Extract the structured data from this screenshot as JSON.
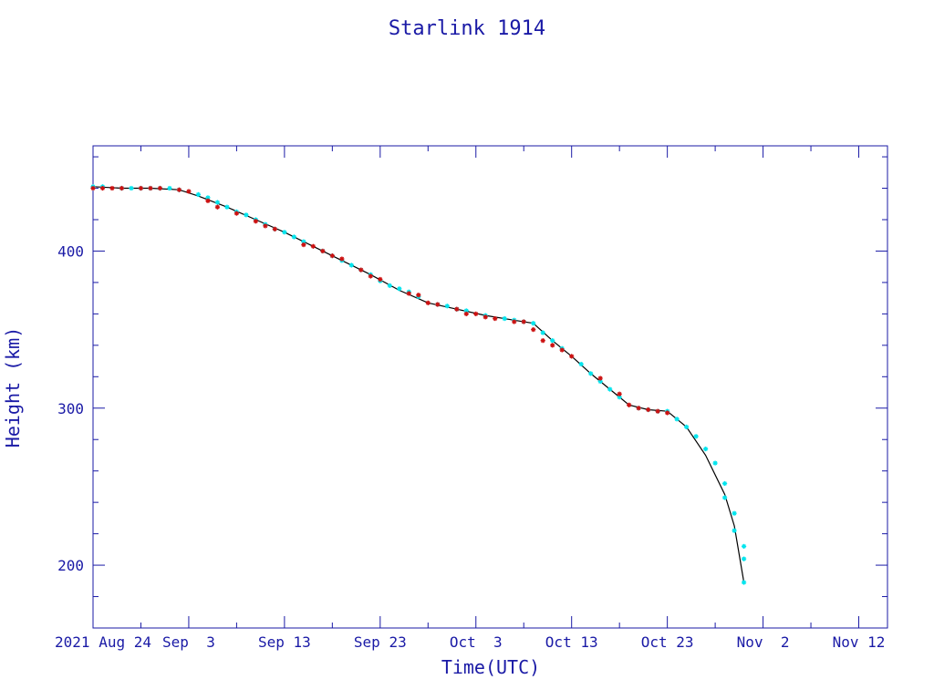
{
  "chart_data": {
    "type": "scatter",
    "title": "Starlink 1914",
    "xlabel": "Time(UTC)",
    "ylabel": "Height (km)",
    "xlim": [
      "2021-08-24",
      "2021-11-15"
    ],
    "ylim": [
      160,
      467
    ],
    "x_ticks": [
      {
        "date": "2021-08-24",
        "label": "2021 Aug 24"
      },
      {
        "date": "2021-09-03",
        "label": "Sep  3"
      },
      {
        "date": "2021-09-13",
        "label": "Sep 13"
      },
      {
        "date": "2021-09-23",
        "label": "Sep 23"
      },
      {
        "date": "2021-10-03",
        "label": "Oct  3"
      },
      {
        "date": "2021-10-13",
        "label": "Oct 13"
      },
      {
        "date": "2021-10-23",
        "label": "Oct 23"
      },
      {
        "date": "2021-11-02",
        "label": "Nov  2"
      },
      {
        "date": "2021-11-12",
        "label": "Nov 12"
      }
    ],
    "y_ticks": [
      {
        "value": 200,
        "label": "200"
      },
      {
        "value": 300,
        "label": "300"
      },
      {
        "value": 400,
        "label": "400"
      }
    ],
    "grid": false,
    "colors": {
      "text": "#1a1aa6",
      "frame": "#1a1aa6",
      "fit_line": "#000000",
      "points_primary": "#00e5ee",
      "points_secondary": "#cc1111"
    },
    "series": [
      {
        "color": "#000000",
        "style": "line",
        "points": [
          [
            "2021-08-24",
            441
          ],
          [
            "2021-08-27",
            440
          ],
          [
            "2021-08-30",
            440
          ],
          [
            "2021-09-02",
            439
          ],
          [
            "2021-09-04",
            435
          ],
          [
            "2021-09-07",
            428
          ],
          [
            "2021-09-10",
            420
          ],
          [
            "2021-09-13",
            412
          ],
          [
            "2021-09-16",
            403
          ],
          [
            "2021-09-19",
            394
          ],
          [
            "2021-09-22",
            385
          ],
          [
            "2021-09-25",
            375
          ],
          [
            "2021-09-28",
            367
          ],
          [
            "2021-10-01",
            363
          ],
          [
            "2021-10-04",
            359
          ],
          [
            "2021-10-07",
            356
          ],
          [
            "2021-10-09",
            354
          ],
          [
            "2021-10-11",
            343
          ],
          [
            "2021-10-13",
            333
          ],
          [
            "2021-10-15",
            322
          ],
          [
            "2021-10-17",
            312
          ],
          [
            "2021-10-19",
            302
          ],
          [
            "2021-10-21",
            299
          ],
          [
            "2021-10-23",
            298
          ],
          [
            "2021-10-25",
            288
          ],
          [
            "2021-10-27",
            270
          ],
          [
            "2021-10-29",
            245
          ],
          [
            "2021-10-30",
            225
          ],
          [
            "2021-10-31",
            189
          ]
        ]
      },
      {
        "color": "#00e5ee",
        "style": "points",
        "points": [
          [
            "2021-08-24",
            441
          ],
          [
            "2021-08-25",
            441
          ],
          [
            "2021-08-27",
            440
          ],
          [
            "2021-08-28",
            440
          ],
          [
            "2021-08-29",
            440
          ],
          [
            "2021-08-30",
            440
          ],
          [
            "2021-08-31",
            440
          ],
          [
            "2021-09-01",
            440
          ],
          [
            "2021-09-02",
            439
          ],
          [
            "2021-09-04",
            436
          ],
          [
            "2021-09-05",
            434
          ],
          [
            "2021-09-06",
            431
          ],
          [
            "2021-09-07",
            428
          ],
          [
            "2021-09-08",
            425
          ],
          [
            "2021-09-09",
            423
          ],
          [
            "2021-09-10",
            420
          ],
          [
            "2021-09-11",
            417
          ],
          [
            "2021-09-12",
            414
          ],
          [
            "2021-09-13",
            412
          ],
          [
            "2021-09-14",
            409
          ],
          [
            "2021-09-15",
            406
          ],
          [
            "2021-09-17",
            400
          ],
          [
            "2021-09-18",
            397
          ],
          [
            "2021-09-19",
            394
          ],
          [
            "2021-09-20",
            391
          ],
          [
            "2021-09-21",
            388
          ],
          [
            "2021-09-22",
            385
          ],
          [
            "2021-09-23",
            381
          ],
          [
            "2021-09-24",
            378
          ],
          [
            "2021-09-25",
            376
          ],
          [
            "2021-09-26",
            374
          ],
          [
            "2021-09-27",
            371
          ],
          [
            "2021-09-29",
            366
          ],
          [
            "2021-09-30",
            365
          ],
          [
            "2021-10-01",
            363
          ],
          [
            "2021-10-02",
            362
          ],
          [
            "2021-10-04",
            359
          ],
          [
            "2021-10-06",
            357
          ],
          [
            "2021-10-07",
            356
          ],
          [
            "2021-10-08",
            355
          ],
          [
            "2021-10-09",
            354
          ],
          [
            "2021-10-10",
            348
          ],
          [
            "2021-10-11",
            343
          ],
          [
            "2021-10-12",
            338
          ],
          [
            "2021-10-14",
            328
          ],
          [
            "2021-10-15",
            322
          ],
          [
            "2021-10-16",
            317
          ],
          [
            "2021-10-17",
            312
          ],
          [
            "2021-10-18",
            307
          ],
          [
            "2021-10-20",
            300
          ],
          [
            "2021-10-21",
            299
          ],
          [
            "2021-10-22",
            298
          ],
          [
            "2021-10-23",
            298
          ],
          [
            "2021-10-24",
            293
          ],
          [
            "2021-10-25",
            288
          ],
          [
            "2021-10-26",
            282
          ],
          [
            "2021-10-27",
            274
          ],
          [
            "2021-10-28",
            265
          ],
          [
            "2021-10-29",
            252
          ],
          [
            "2021-10-29",
            243
          ],
          [
            "2021-10-30",
            233
          ],
          [
            "2021-10-30",
            222
          ],
          [
            "2021-10-31",
            212
          ],
          [
            "2021-10-31",
            204
          ],
          [
            "2021-10-31",
            189
          ]
        ]
      },
      {
        "color": "#cc1111",
        "style": "points",
        "points": [
          [
            "2021-08-24",
            440
          ],
          [
            "2021-08-25",
            440
          ],
          [
            "2021-08-26",
            440
          ],
          [
            "2021-08-27",
            440
          ],
          [
            "2021-08-29",
            440
          ],
          [
            "2021-08-30",
            440
          ],
          [
            "2021-08-31",
            440
          ],
          [
            "2021-09-02",
            439
          ],
          [
            "2021-09-03",
            438
          ],
          [
            "2021-09-05",
            432
          ],
          [
            "2021-09-06",
            428
          ],
          [
            "2021-09-08",
            424
          ],
          [
            "2021-09-10",
            419
          ],
          [
            "2021-09-11",
            416
          ],
          [
            "2021-09-12",
            414
          ],
          [
            "2021-09-15",
            404
          ],
          [
            "2021-09-16",
            403
          ],
          [
            "2021-09-17",
            400
          ],
          [
            "2021-09-18",
            397
          ],
          [
            "2021-09-19",
            395
          ],
          [
            "2021-09-21",
            388
          ],
          [
            "2021-09-22",
            384
          ],
          [
            "2021-09-23",
            382
          ],
          [
            "2021-09-26",
            373
          ],
          [
            "2021-09-27",
            372
          ],
          [
            "2021-09-28",
            367
          ],
          [
            "2021-09-29",
            366
          ],
          [
            "2021-10-01",
            363
          ],
          [
            "2021-10-02",
            360
          ],
          [
            "2021-10-03",
            360
          ],
          [
            "2021-10-04",
            358
          ],
          [
            "2021-10-05",
            357
          ],
          [
            "2021-10-07",
            355
          ],
          [
            "2021-10-08",
            355
          ],
          [
            "2021-10-09",
            350
          ],
          [
            "2021-10-10",
            343
          ],
          [
            "2021-10-11",
            340
          ],
          [
            "2021-10-12",
            337
          ],
          [
            "2021-10-13",
            333
          ],
          [
            "2021-10-16",
            319
          ],
          [
            "2021-10-18",
            309
          ],
          [
            "2021-10-19",
            302
          ],
          [
            "2021-10-20",
            300
          ],
          [
            "2021-10-21",
            299
          ],
          [
            "2021-10-22",
            298
          ],
          [
            "2021-10-23",
            297
          ]
        ]
      }
    ]
  }
}
